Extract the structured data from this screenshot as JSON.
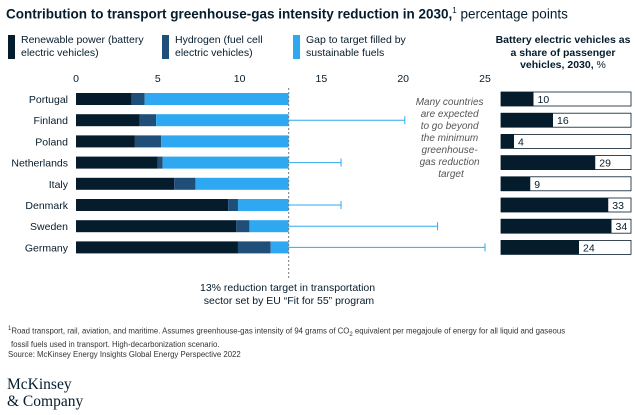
{
  "title": {
    "bold": "Contribution to transport greenhouse-gas intensity reduction in 2030,",
    "sup": "1",
    "normal": " percentage points"
  },
  "legend": [
    {
      "label": "Renewable power (battery electric vehicles)",
      "color": "#051c2c"
    },
    {
      "label": "Hydrogen (fuel cell electric vehicles)",
      "color": "#1f4e79"
    },
    {
      "label": "Gap to target filled by sustainable fuels",
      "color": "#2ea8f0"
    }
  ],
  "side_title": {
    "bold": "Battery electric vehicles as a share of passenger vehicles, 2030,",
    "pct": " %"
  },
  "annotation_lines": [
    "Many countries",
    "are expected",
    "to go beyond",
    "the minimum",
    "greenhouse-",
    "gas reduction",
    "target"
  ],
  "target_note_lines": [
    "13% reduction target in transportation",
    "sector set by EU “Fit for 55” program"
  ],
  "footnote": {
    "sup": "1",
    "line1_a": "Road transport, rail, aviation, and maritime. Assumes greenhouse-gas intensity of 94 grams of CO",
    "line1_sub": "2",
    "line1_b": " equivalent per megajoule of energy for all liquid and gaseous",
    "line2": "fossil fuels used in transport. High-decarbonization scenario.",
    "line3": "Source: McKinsey Energy Insights Global Energy Perspective 2022"
  },
  "logo": {
    "line1": "McKinsey",
    "line2": "& Company"
  },
  "chart_data": {
    "type": "bar",
    "orientation": "horizontal",
    "stacked": true,
    "categories": [
      "Portugal",
      "Finland",
      "Poland",
      "Netherlands",
      "Italy",
      "Denmark",
      "Sweden",
      "Germany"
    ],
    "series": [
      {
        "name": "Renewable power (battery electric vehicles)",
        "color": "#051c2c",
        "values": [
          3.4,
          3.9,
          3.6,
          5.0,
          6.0,
          9.3,
          9.8,
          9.9
        ]
      },
      {
        "name": "Hydrogen (fuel cell electric vehicles)",
        "color": "#1f4e79",
        "values": [
          0.8,
          1.0,
          1.6,
          0.3,
          1.3,
          0.6,
          0.8,
          2.0
        ]
      },
      {
        "name": "Gap to target filled by sustainable fuels",
        "color": "#2ea8f0",
        "values": [
          8.8,
          8.1,
          7.8,
          7.7,
          5.7,
          3.1,
          2.4,
          1.1
        ]
      }
    ],
    "beyond_target": [
      null,
      20.1,
      null,
      16.2,
      null,
      16.2,
      22.1,
      25.0
    ],
    "target": 13,
    "xlim": [
      0,
      25
    ],
    "xticks": [
      0,
      5,
      10,
      15,
      20,
      25
    ],
    "bev_share": [
      10,
      16,
      4,
      29,
      9,
      33,
      34,
      24
    ],
    "bev_share_max": 40
  }
}
